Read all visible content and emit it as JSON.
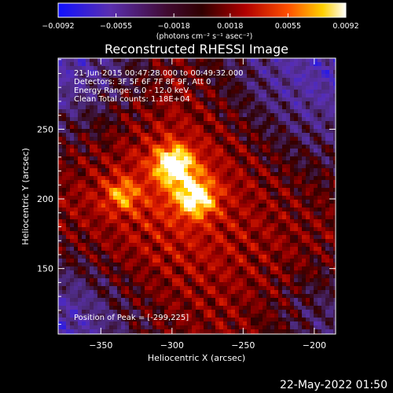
{
  "chart_data": {
    "type": "heatmap",
    "title": "Reconstructed RHESSI Image",
    "xlabel": "Heliocentric X (arcsec)",
    "ylabel": "Heliocentric Y (arcsec)",
    "xlim": [
      -380,
      -185
    ],
    "ylim": [
      103,
      301
    ],
    "x_ticks": [
      -350,
      -300,
      -250,
      -200
    ],
    "y_ticks": [
      150,
      200,
      250
    ],
    "x_tick_labels": [
      "−350",
      "−300",
      "−250",
      "−200"
    ],
    "y_tick_labels": [
      "150",
      "200",
      "250"
    ],
    "colorbar": {
      "min": -0.0092,
      "max": 0.0092,
      "ticks": [
        -0.0092,
        -0.0055,
        -0.0018,
        0.0018,
        0.0055,
        0.0092
      ],
      "tick_labels": [
        "−0.0092",
        "−0.0055",
        "−0.0018",
        "0.0018",
        "0.0055",
        "0.0092"
      ],
      "units_label": "(photons cm⁻² s⁻¹ asec⁻²)",
      "colormap": "RHESSI blue-purple-red-yellow-white"
    },
    "sources": [
      {
        "x": -299,
        "y": 225,
        "relative_intensity": 1.0
      },
      {
        "x": -283,
        "y": 200,
        "relative_intensity": 0.85
      },
      {
        "x": -335,
        "y": 203,
        "relative_intensity": 0.55
      }
    ],
    "annotations": [
      "21-Jun-2015 00:47:28.000 to 00:49:32.000",
      "Detectors: 3F 5F 6F 7F 8F 9F, Att 0",
      "Energy Range: 6.0 - 12.0 keV",
      "Clean     Total counts: 1.18E+04"
    ],
    "peak_label": "Position of Peak = [-299,225]",
    "footer": "22-May-2022 01:50"
  },
  "colors": {
    "background": "#000000",
    "text": "#ffffff",
    "colormap_stops": [
      "#1010ff",
      "#5a2fb0",
      "#4b2a7a",
      "#300000",
      "#9b0000",
      "#e22000",
      "#ff7a00",
      "#ffd600",
      "#ffffff"
    ]
  }
}
